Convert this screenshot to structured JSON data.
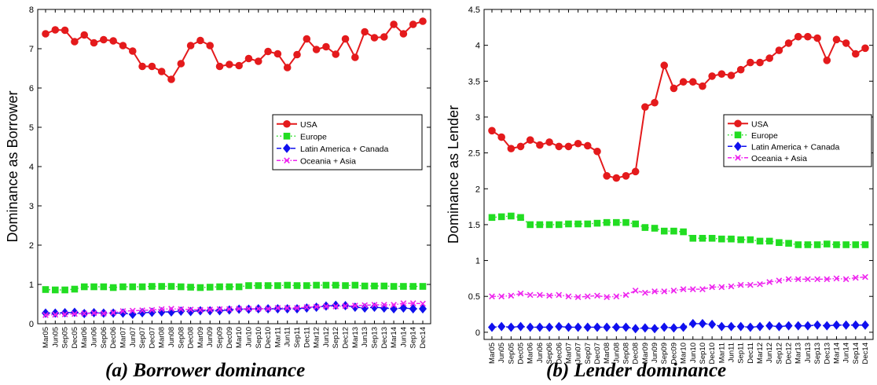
{
  "charts": [
    {
      "id": "a",
      "caption": "(a) Borrower dominance",
      "ylabel": "Dominance as Borrower",
      "ylim": [
        0,
        8
      ],
      "yticks": [
        "0",
        "1",
        "2",
        "3",
        "4",
        "5",
        "6",
        "7",
        "8"
      ]
    },
    {
      "id": "b",
      "caption": "(b) Lender dominance",
      "ylabel": "Dominance as Lender",
      "ylim": [
        -0.1,
        4.5
      ],
      "yticks": [
        "0",
        "0.5",
        "1",
        "1.5",
        "2",
        "2.5",
        "3",
        "3.5",
        "4",
        "4.5"
      ]
    }
  ],
  "chart_data": [
    {
      "type": "line",
      "title": "",
      "xlabel": "",
      "ylabel": "Dominance as Borrower",
      "ylim": [
        0,
        8
      ],
      "grid": false,
      "legend_position": "right",
      "x_tick_labels": [
        "Mar05",
        "Jun05",
        "Sep05",
        "Dec05",
        "Mar06",
        "Jun06",
        "Sep06",
        "Dec06",
        "Mar07",
        "Jun07",
        "Sep07",
        "Dec07",
        "Mar08",
        "Jun08",
        "Sep08",
        "Dec08",
        "Mar09",
        "Jun09",
        "Sep09",
        "Dec09",
        "Mar10",
        "Jun10",
        "Sep10",
        "Dec10",
        "Mar11",
        "Jun11",
        "Sep11",
        "Dec11",
        "Mar12",
        "Jun12",
        "Sep12",
        "Dec12",
        "Mar13",
        "Jun13",
        "Sep13",
        "Dec13",
        "Mar14",
        "Jun14",
        "Sep14",
        "Dec14"
      ],
      "series": [
        {
          "name": "USA",
          "color": "#e41a1c",
          "marker": "circle",
          "line": "solid",
          "values": [
            7.38,
            7.48,
            7.47,
            7.18,
            7.35,
            7.15,
            7.23,
            7.2,
            7.08,
            6.94,
            6.55,
            6.55,
            6.42,
            6.22,
            6.62,
            7.08,
            7.21,
            7.08,
            6.55,
            6.6,
            6.57,
            6.75,
            6.68,
            6.93,
            6.87,
            6.52,
            6.85,
            7.25,
            6.98,
            7.05,
            6.86,
            7.25,
            6.78,
            7.43,
            7.28,
            7.3,
            7.62,
            7.38,
            7.62,
            7.7
          ]
        },
        {
          "name": "Europe",
          "color": "#22dd22",
          "marker": "square",
          "line": "dotted",
          "values": [
            0.87,
            0.86,
            0.86,
            0.88,
            0.94,
            0.94,
            0.94,
            0.92,
            0.94,
            0.94,
            0.94,
            0.95,
            0.95,
            0.95,
            0.94,
            0.93,
            0.92,
            0.93,
            0.94,
            0.94,
            0.94,
            0.97,
            0.97,
            0.97,
            0.97,
            0.98,
            0.97,
            0.97,
            0.98,
            0.98,
            0.98,
            0.97,
            0.98,
            0.96,
            0.96,
            0.96,
            0.95,
            0.95,
            0.95,
            0.95
          ]
        },
        {
          "name": "Latin America + Canada",
          "color": "#1010ee",
          "marker": "diamond",
          "line": "dashed",
          "values": [
            0.27,
            0.27,
            0.28,
            0.29,
            0.26,
            0.28,
            0.27,
            0.27,
            0.27,
            0.24,
            0.28,
            0.29,
            0.3,
            0.3,
            0.32,
            0.31,
            0.33,
            0.33,
            0.33,
            0.35,
            0.37,
            0.37,
            0.38,
            0.38,
            0.38,
            0.38,
            0.38,
            0.4,
            0.42,
            0.45,
            0.47,
            0.46,
            0.42,
            0.4,
            0.42,
            0.4,
            0.38,
            0.4,
            0.38,
            0.38
          ]
        },
        {
          "name": "Oceania + Asia",
          "color": "#ee22ee",
          "marker": "x",
          "line": "dash-dot",
          "values": [
            0.22,
            0.23,
            0.24,
            0.25,
            0.26,
            0.27,
            0.26,
            0.28,
            0.32,
            0.33,
            0.34,
            0.35,
            0.37,
            0.38,
            0.37,
            0.36,
            0.35,
            0.36,
            0.37,
            0.37,
            0.38,
            0.38,
            0.38,
            0.38,
            0.4,
            0.4,
            0.4,
            0.42,
            0.43,
            0.44,
            0.44,
            0.45,
            0.46,
            0.47,
            0.48,
            0.48,
            0.48,
            0.52,
            0.52,
            0.51
          ]
        }
      ]
    },
    {
      "type": "line",
      "title": "",
      "xlabel": "",
      "ylabel": "Dominance as Lender",
      "ylim": [
        -0.1,
        4.5
      ],
      "grid": false,
      "legend_position": "right",
      "x_tick_labels": [
        "Mar05",
        "Jun05",
        "Sep05",
        "Dec05",
        "Mar06",
        "Jun06",
        "Sep06",
        "Dec06",
        "Mar07",
        "Jun07",
        "Sep07",
        "Dec07",
        "Mar08",
        "Jun08",
        "Sep08",
        "Dec08",
        "Mar09",
        "Jun09",
        "Sep09",
        "Dec09",
        "Mar10",
        "Jun10",
        "Sep10",
        "Dec10",
        "Mar11",
        "Jun11",
        "Sep11",
        "Dec11",
        "Mar12",
        "Jun12",
        "Sep12",
        "Dec12",
        "Mar13",
        "Jun13",
        "Sep13",
        "Dec13",
        "Mar14",
        "Jun14",
        "Sep14",
        "Dec14"
      ],
      "series": [
        {
          "name": "USA",
          "color": "#e41a1c",
          "marker": "circle",
          "line": "solid",
          "values": [
            2.81,
            2.72,
            2.56,
            2.59,
            2.68,
            2.61,
            2.65,
            2.59,
            2.59,
            2.63,
            2.6,
            2.52,
            2.18,
            2.15,
            2.18,
            2.24,
            3.14,
            3.2,
            3.72,
            3.4,
            3.49,
            3.49,
            3.43,
            3.57,
            3.6,
            3.58,
            3.66,
            3.76,
            3.76,
            3.82,
            3.93,
            4.03,
            4.12,
            4.12,
            4.1,
            3.79,
            4.08,
            4.03,
            3.88,
            3.96
          ]
        },
        {
          "name": "Europe",
          "color": "#22dd22",
          "marker": "square",
          "line": "dotted",
          "values": [
            1.6,
            1.61,
            1.62,
            1.6,
            1.5,
            1.5,
            1.5,
            1.5,
            1.51,
            1.51,
            1.51,
            1.52,
            1.53,
            1.53,
            1.53,
            1.51,
            1.46,
            1.45,
            1.41,
            1.41,
            1.4,
            1.31,
            1.31,
            1.31,
            1.3,
            1.3,
            1.29,
            1.29,
            1.27,
            1.27,
            1.25,
            1.24,
            1.22,
            1.22,
            1.22,
            1.23,
            1.22,
            1.22,
            1.22,
            1.22
          ]
        },
        {
          "name": "Latin America + Canada",
          "color": "#1010ee",
          "marker": "diamond",
          "line": "dashed",
          "values": [
            0.07,
            0.08,
            0.07,
            0.08,
            0.07,
            0.07,
            0.07,
            0.08,
            0.07,
            0.07,
            0.07,
            0.07,
            0.07,
            0.07,
            0.07,
            0.05,
            0.06,
            0.05,
            0.07,
            0.06,
            0.07,
            0.12,
            0.12,
            0.11,
            0.08,
            0.08,
            0.08,
            0.07,
            0.08,
            0.09,
            0.08,
            0.09,
            0.09,
            0.09,
            0.1,
            0.09,
            0.1,
            0.1,
            0.1,
            0.1
          ]
        },
        {
          "name": "Oceania + Asia",
          "color": "#ee22ee",
          "marker": "x",
          "line": "dash-dot",
          "values": [
            0.5,
            0.5,
            0.51,
            0.54,
            0.52,
            0.52,
            0.51,
            0.52,
            0.5,
            0.49,
            0.5,
            0.51,
            0.49,
            0.5,
            0.52,
            0.58,
            0.55,
            0.57,
            0.57,
            0.58,
            0.6,
            0.6,
            0.6,
            0.63,
            0.63,
            0.64,
            0.66,
            0.66,
            0.67,
            0.7,
            0.72,
            0.74,
            0.74,
            0.74,
            0.74,
            0.74,
            0.75,
            0.74,
            0.76,
            0.77
          ]
        }
      ]
    }
  ]
}
